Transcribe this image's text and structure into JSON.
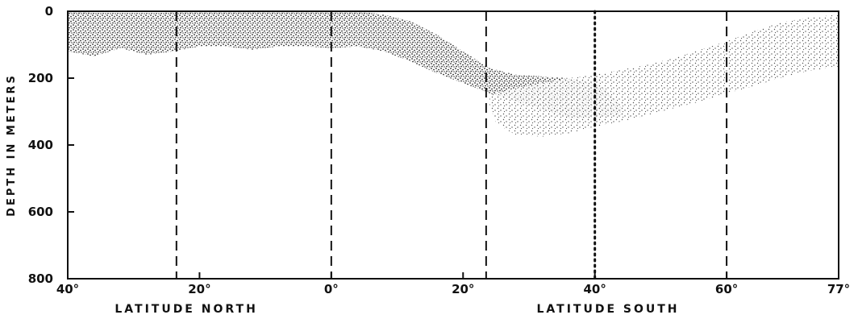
{
  "chart_data": {
    "type": "area",
    "ylabel": "DEPTH IN METERS",
    "x_region_labels": [
      "LATITUDE NORTH",
      "LATITUDE SOUTH"
    ],
    "xticks": [
      {
        "value": -40,
        "label": "40°"
      },
      {
        "value": -20,
        "label": "20°"
      },
      {
        "value": 0,
        "label": "0°"
      },
      {
        "value": 20,
        "label": "20°"
      },
      {
        "value": 40,
        "label": "40°"
      },
      {
        "value": 60,
        "label": "60°"
      },
      {
        "value": 77,
        "label": "77°"
      }
    ],
    "yticks": [
      {
        "value": 0,
        "label": "0"
      },
      {
        "value": 200,
        "label": "200"
      },
      {
        "value": 400,
        "label": "400"
      },
      {
        "value": 600,
        "label": "600"
      },
      {
        "value": 800,
        "label": "800"
      }
    ],
    "xlim": [
      -40,
      77
    ],
    "ylim": [
      0,
      800
    ],
    "y_inverted": true,
    "grid": false,
    "vertical_lines": [
      {
        "x": -23.5,
        "style": "dashed"
      },
      {
        "x": 0,
        "style": "dashed"
      },
      {
        "x": 23.5,
        "style": "dashed"
      },
      {
        "x": 40,
        "style": "dotted"
      },
      {
        "x": 60,
        "style": "dashed"
      }
    ],
    "series": [
      {
        "fill": "stippled-dark",
        "x": [
          -40,
          -38,
          -36,
          -34,
          -30,
          -26,
          -22,
          -18,
          -14,
          -10,
          -6,
          -2,
          0,
          4,
          8,
          12,
          16,
          20,
          24,
          28,
          32,
          36,
          40,
          42,
          44,
          44,
          40,
          36,
          32,
          28,
          24,
          20,
          16,
          12,
          8,
          4,
          0,
          -4,
          -8,
          -12,
          -16,
          -20,
          -24,
          -28,
          -32,
          -36,
          -40
        ],
        "y": [
          0,
          0,
          5,
          5,
          5,
          5,
          0,
          0,
          0,
          0,
          0,
          0,
          0,
          0,
          10,
          30,
          70,
          120,
          170,
          190,
          195,
          200,
          215,
          240,
          285,
          310,
          320,
          320,
          295,
          270,
          245,
          215,
          185,
          150,
          120,
          105,
          110,
          105,
          105,
          115,
          105,
          105,
          120,
          130,
          110,
          135,
          120
        ]
      },
      {
        "fill": "stippled-light",
        "x": [
          24,
          28,
          32,
          36,
          40,
          44,
          48,
          52,
          56,
          60,
          64,
          68,
          72,
          77,
          77,
          72,
          68,
          64,
          60,
          56,
          52,
          48,
          44,
          40,
          36,
          32,
          28,
          25,
          24
        ],
        "y": [
          250,
          230,
          215,
          200,
          190,
          175,
          160,
          140,
          115,
          90,
          60,
          35,
          20,
          10,
          165,
          180,
          200,
          225,
          245,
          270,
          290,
          310,
          330,
          345,
          365,
          375,
          370,
          335,
          280
        ]
      }
    ]
  }
}
